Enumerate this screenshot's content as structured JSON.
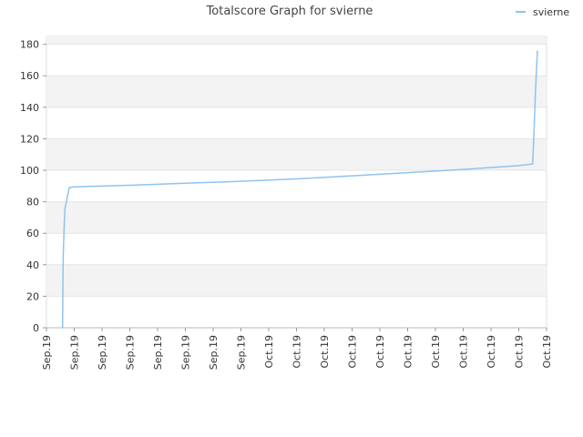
{
  "chart_data": {
    "type": "line",
    "title": "Totalscore Graph for svierne",
    "series": [
      {
        "name": "svierne",
        "color": "#8ec3f0",
        "x": [
          0.56,
          0.58,
          0.6,
          0.62,
          0.66,
          0.82,
          1,
          3,
          5,
          7,
          9,
          11,
          13,
          15,
          17,
          17.5,
          17.55,
          17.6,
          17.67
        ],
        "values": [
          0,
          0,
          43,
          55,
          75,
          89,
          89.5,
          90.5,
          91.8,
          93,
          94.5,
          96.5,
          98.5,
          100.5,
          103,
          104,
          125,
          150,
          176
        ]
      }
    ],
    "xlim": [
      0,
      18
    ],
    "xticks": [
      {
        "value": 0,
        "label": "Sep.19"
      },
      {
        "value": 1,
        "label": "Sep.19"
      },
      {
        "value": 2,
        "label": "Sep.19"
      },
      {
        "value": 3,
        "label": "Sep.19"
      },
      {
        "value": 4,
        "label": "Sep.19"
      },
      {
        "value": 5,
        "label": "Sep.19"
      },
      {
        "value": 6,
        "label": "Sep.19"
      },
      {
        "value": 7,
        "label": "Sep.19"
      },
      {
        "value": 8,
        "label": "Oct.19"
      },
      {
        "value": 9,
        "label": "Oct.19"
      },
      {
        "value": 10,
        "label": "Oct.19"
      },
      {
        "value": 11,
        "label": "Oct.19"
      },
      {
        "value": 12,
        "label": "Oct.19"
      },
      {
        "value": 13,
        "label": "Oct.19"
      },
      {
        "value": 14,
        "label": "Oct.19"
      },
      {
        "value": 15,
        "label": "Oct.19"
      },
      {
        "value": 16,
        "label": "Oct.19"
      },
      {
        "value": 17,
        "label": "Oct.19"
      },
      {
        "value": 18,
        "label": "Oct.19"
      }
    ],
    "ylim": [
      0,
      185
    ],
    "yticks": [
      0,
      20,
      40,
      60,
      80,
      100,
      120,
      140,
      160,
      180
    ],
    "grid": true,
    "legend": "top-right"
  }
}
